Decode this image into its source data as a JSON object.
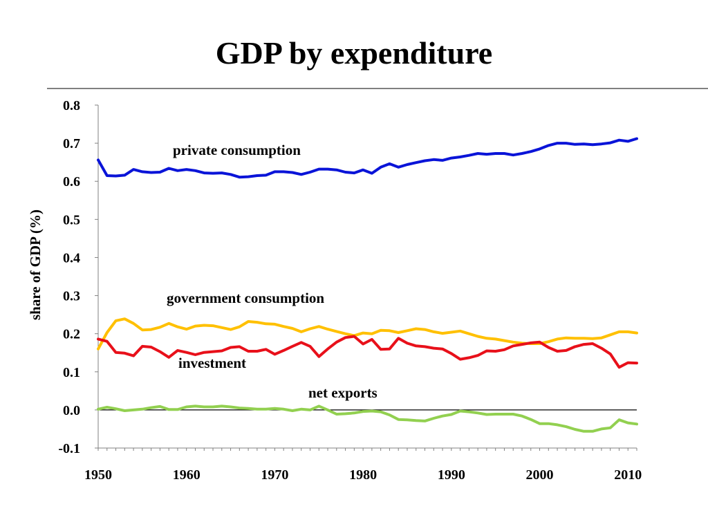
{
  "slide": {
    "title": "GDP by expenditure"
  },
  "chart_data": {
    "type": "line",
    "title": "GDP by expenditure",
    "xlabel": "",
    "ylabel": "share of GDP (%)",
    "xlim": [
      1950,
      2011
    ],
    "ylim": [
      -0.1,
      0.8
    ],
    "yticks": [
      "0.8",
      "0.7",
      "0.6",
      "0.5",
      "0.4",
      "0.3",
      "0.2",
      "0.1",
      "0.0",
      "-0.1"
    ],
    "xticks": [
      "1950",
      "1960",
      "1970",
      "1980",
      "1990",
      "2000",
      "2010"
    ],
    "grid": false,
    "zero_line": true,
    "x": [
      1950,
      1951,
      1952,
      1953,
      1954,
      1955,
      1956,
      1957,
      1958,
      1959,
      1960,
      1961,
      1962,
      1963,
      1964,
      1965,
      1966,
      1967,
      1968,
      1969,
      1970,
      1971,
      1972,
      1973,
      1974,
      1975,
      1976,
      1977,
      1978,
      1979,
      1980,
      1981,
      1982,
      1983,
      1984,
      1985,
      1986,
      1987,
      1988,
      1989,
      1990,
      1991,
      1992,
      1993,
      1994,
      1995,
      1996,
      1997,
      1998,
      1999,
      2000,
      2001,
      2002,
      2003,
      2004,
      2005,
      2006,
      2007,
      2008,
      2009,
      2010,
      2011
    ],
    "series": [
      {
        "name": "private consumption",
        "color": "#0a14d8",
        "values": [
          0.656,
          0.615,
          0.614,
          0.616,
          0.631,
          0.625,
          0.623,
          0.624,
          0.634,
          0.628,
          0.631,
          0.628,
          0.622,
          0.621,
          0.622,
          0.618,
          0.611,
          0.612,
          0.615,
          0.616,
          0.625,
          0.625,
          0.623,
          0.618,
          0.624,
          0.632,
          0.632,
          0.63,
          0.624,
          0.622,
          0.63,
          0.621,
          0.637,
          0.646,
          0.637,
          0.644,
          0.649,
          0.654,
          0.657,
          0.655,
          0.661,
          0.664,
          0.668,
          0.673,
          0.671,
          0.673,
          0.673,
          0.669,
          0.673,
          0.678,
          0.685,
          0.694,
          0.7,
          0.7,
          0.697,
          0.698,
          0.696,
          0.698,
          0.701,
          0.708,
          0.705,
          0.712
        ]
      },
      {
        "name": "government consumption",
        "color": "#ffc000",
        "values": [
          0.16,
          0.203,
          0.234,
          0.239,
          0.227,
          0.21,
          0.211,
          0.217,
          0.227,
          0.218,
          0.212,
          0.22,
          0.222,
          0.221,
          0.216,
          0.211,
          0.218,
          0.232,
          0.23,
          0.226,
          0.225,
          0.219,
          0.214,
          0.205,
          0.213,
          0.219,
          0.212,
          0.206,
          0.2,
          0.195,
          0.202,
          0.2,
          0.209,
          0.208,
          0.203,
          0.208,
          0.213,
          0.211,
          0.205,
          0.201,
          0.204,
          0.207,
          0.2,
          0.193,
          0.188,
          0.186,
          0.182,
          0.178,
          0.175,
          0.174,
          0.174,
          0.179,
          0.186,
          0.189,
          0.188,
          0.188,
          0.187,
          0.189,
          0.197,
          0.205,
          0.205,
          0.202
        ]
      },
      {
        "name": "investment",
        "color": "#e8101a",
        "values": [
          0.186,
          0.18,
          0.151,
          0.149,
          0.142,
          0.167,
          0.165,
          0.153,
          0.138,
          0.156,
          0.151,
          0.145,
          0.151,
          0.153,
          0.155,
          0.164,
          0.166,
          0.154,
          0.154,
          0.159,
          0.146,
          0.156,
          0.167,
          0.177,
          0.167,
          0.14,
          0.16,
          0.178,
          0.19,
          0.193,
          0.173,
          0.185,
          0.159,
          0.16,
          0.188,
          0.175,
          0.168,
          0.166,
          0.162,
          0.16,
          0.148,
          0.133,
          0.137,
          0.143,
          0.155,
          0.154,
          0.158,
          0.168,
          0.172,
          0.176,
          0.178,
          0.164,
          0.154,
          0.156,
          0.166,
          0.172,
          0.174,
          0.162,
          0.147,
          0.112,
          0.124,
          0.123
        ]
      },
      {
        "name": "net exports",
        "color": "#92d050",
        "values": [
          0.002,
          0.007,
          0.003,
          -0.002,
          0.0,
          0.002,
          0.006,
          0.009,
          0.001,
          0.001,
          0.008,
          0.01,
          0.008,
          0.008,
          0.01,
          0.008,
          0.005,
          0.004,
          0.002,
          0.002,
          0.004,
          0.002,
          -0.002,
          0.002,
          0.0,
          0.01,
          0.0,
          -0.011,
          -0.01,
          -0.008,
          -0.004,
          -0.003,
          -0.005,
          -0.013,
          -0.025,
          -0.026,
          -0.028,
          -0.029,
          -0.022,
          -0.016,
          -0.012,
          -0.003,
          -0.005,
          -0.008,
          -0.012,
          -0.011,
          -0.011,
          -0.011,
          -0.016,
          -0.025,
          -0.036,
          -0.036,
          -0.039,
          -0.044,
          -0.051,
          -0.056,
          -0.056,
          -0.05,
          -0.047,
          -0.026,
          -0.034,
          -0.037
        ]
      }
    ]
  }
}
